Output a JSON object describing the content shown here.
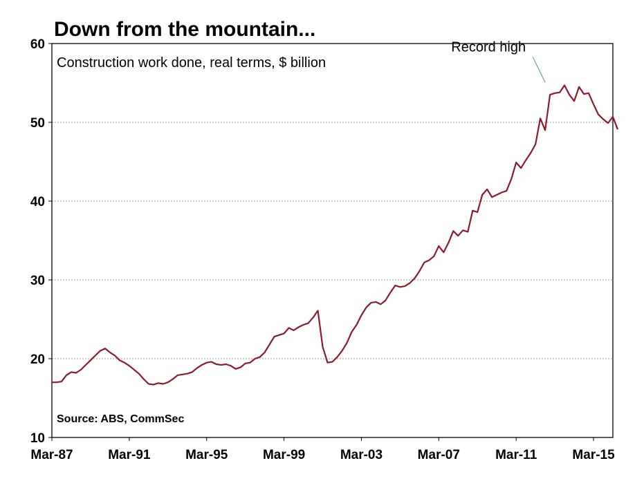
{
  "chart_data": {
    "type": "line",
    "title": "Down from the mountain...",
    "subtitle": "Construction work done, real terms, $ billion",
    "source": "Source: ABS, CommSec",
    "annotation": {
      "text": "Record high",
      "x": 2012.5,
      "y": 54.8
    },
    "xlim": [
      1987.0,
      2016.0
    ],
    "ylim": [
      10,
      60
    ],
    "y_ticks": [
      10,
      20,
      30,
      40,
      50,
      60
    ],
    "x_ticks": [
      {
        "label": "Mar-87",
        "x": 1987.0
      },
      {
        "label": "Mar-91",
        "x": 1991.0
      },
      {
        "label": "Mar-95",
        "x": 1995.0
      },
      {
        "label": "Mar-99",
        "x": 1999.0
      },
      {
        "label": "Mar-03",
        "x": 2003.0
      },
      {
        "label": "Mar-07",
        "x": 2007.0
      },
      {
        "label": "Mar-11",
        "x": 2011.0
      },
      {
        "label": "Mar-15",
        "x": 2015.0
      }
    ],
    "grid": true,
    "colors": {
      "series": "#8b1a2a",
      "grid": "#9a9a9a",
      "leader": "#6aa0a0"
    },
    "series": [
      {
        "points": [
          [
            1987.0,
            17.0
          ],
          [
            1987.25,
            17.0
          ],
          [
            1987.5,
            17.1
          ],
          [
            1987.75,
            17.9
          ],
          [
            1988.0,
            18.3
          ],
          [
            1988.25,
            18.2
          ],
          [
            1988.5,
            18.6
          ],
          [
            1988.75,
            19.2
          ],
          [
            1989.0,
            19.8
          ],
          [
            1989.25,
            20.4
          ],
          [
            1989.5,
            21.0
          ],
          [
            1989.75,
            21.3
          ],
          [
            1990.0,
            20.8
          ],
          [
            1990.25,
            20.4
          ],
          [
            1990.5,
            19.8
          ],
          [
            1990.75,
            19.5
          ],
          [
            1991.0,
            19.1
          ],
          [
            1991.25,
            18.6
          ],
          [
            1991.5,
            18.1
          ],
          [
            1991.75,
            17.4
          ],
          [
            1992.0,
            16.8
          ],
          [
            1992.25,
            16.7
          ],
          [
            1992.5,
            16.9
          ],
          [
            1992.75,
            16.8
          ],
          [
            1993.0,
            17.0
          ],
          [
            1993.25,
            17.4
          ],
          [
            1993.5,
            17.9
          ],
          [
            1993.75,
            18.0
          ],
          [
            1994.0,
            18.1
          ],
          [
            1994.25,
            18.3
          ],
          [
            1994.5,
            18.8
          ],
          [
            1994.75,
            19.2
          ],
          [
            1995.0,
            19.5
          ],
          [
            1995.25,
            19.6
          ],
          [
            1995.5,
            19.3
          ],
          [
            1995.75,
            19.2
          ],
          [
            1996.0,
            19.3
          ],
          [
            1996.25,
            19.1
          ],
          [
            1996.5,
            18.7
          ],
          [
            1996.75,
            18.9
          ],
          [
            1997.0,
            19.4
          ],
          [
            1997.25,
            19.5
          ],
          [
            1997.5,
            20.0
          ],
          [
            1997.75,
            20.2
          ],
          [
            1998.0,
            20.8
          ],
          [
            1998.25,
            21.8
          ],
          [
            1998.5,
            22.8
          ],
          [
            1998.75,
            23.0
          ],
          [
            1999.0,
            23.2
          ],
          [
            1999.25,
            23.9
          ],
          [
            1999.5,
            23.6
          ],
          [
            1999.75,
            24.0
          ],
          [
            2000.0,
            24.3
          ],
          [
            2000.25,
            24.5
          ],
          [
            2000.5,
            25.2
          ],
          [
            2000.75,
            26.1
          ],
          [
            2001.0,
            21.5
          ],
          [
            2001.25,
            19.5
          ],
          [
            2001.5,
            19.6
          ],
          [
            2001.75,
            20.2
          ],
          [
            2002.0,
            21.0
          ],
          [
            2002.25,
            22.0
          ],
          [
            2002.5,
            23.4
          ],
          [
            2002.75,
            24.3
          ],
          [
            2003.0,
            25.5
          ],
          [
            2003.25,
            26.5
          ],
          [
            2003.5,
            27.1
          ],
          [
            2003.75,
            27.2
          ],
          [
            2004.0,
            26.9
          ],
          [
            2004.25,
            27.4
          ],
          [
            2004.5,
            28.4
          ],
          [
            2004.75,
            29.3
          ],
          [
            2005.0,
            29.1
          ],
          [
            2005.25,
            29.2
          ],
          [
            2005.5,
            29.6
          ],
          [
            2005.75,
            30.2
          ],
          [
            2006.0,
            31.1
          ],
          [
            2006.25,
            32.2
          ],
          [
            2006.5,
            32.5
          ],
          [
            2006.75,
            33.0
          ],
          [
            2007.0,
            34.3
          ],
          [
            2007.25,
            33.5
          ],
          [
            2007.5,
            34.7
          ],
          [
            2007.75,
            36.2
          ],
          [
            2008.0,
            35.6
          ],
          [
            2008.25,
            36.3
          ],
          [
            2008.5,
            36.1
          ],
          [
            2008.75,
            38.8
          ],
          [
            2009.0,
            38.6
          ],
          [
            2009.25,
            40.8
          ],
          [
            2009.5,
            41.5
          ],
          [
            2009.75,
            40.5
          ],
          [
            2010.0,
            40.8
          ],
          [
            2010.25,
            41.1
          ],
          [
            2010.5,
            41.3
          ],
          [
            2010.75,
            42.8
          ],
          [
            2011.0,
            44.9
          ],
          [
            2011.25,
            44.2
          ],
          [
            2011.5,
            45.2
          ],
          [
            2011.75,
            46.1
          ],
          [
            2012.0,
            47.2
          ],
          [
            2012.25,
            50.5
          ],
          [
            2012.5,
            49.0
          ],
          [
            2012.75,
            53.5
          ],
          [
            2013.0,
            53.7
          ],
          [
            2013.25,
            53.8
          ],
          [
            2013.5,
            54.7
          ],
          [
            2013.75,
            53.5
          ],
          [
            2014.0,
            52.7
          ],
          [
            2014.25,
            54.5
          ],
          [
            2014.5,
            53.6
          ],
          [
            2014.75,
            53.7
          ],
          [
            2015.0,
            52.3
          ],
          [
            2015.25,
            51.0
          ],
          [
            2015.5,
            50.4
          ],
          [
            2015.75,
            49.9
          ],
          [
            2016.0,
            50.7
          ],
          [
            2016.25,
            49.1
          ]
        ]
      }
    ]
  }
}
